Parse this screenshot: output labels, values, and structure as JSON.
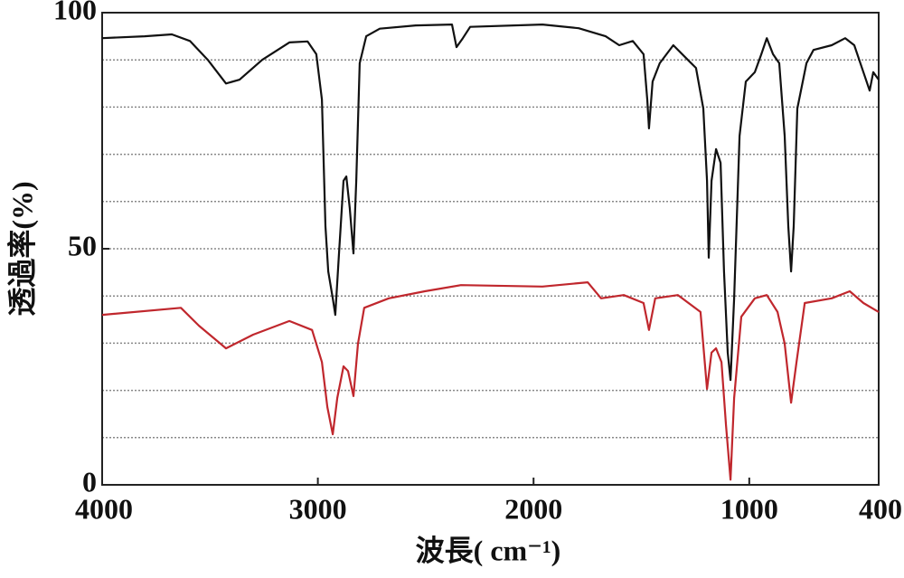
{
  "chart_data": {
    "type": "line",
    "xlabel": "波長( cm⁻¹)",
    "ylabel": "透過率(%)",
    "xlim": [
      4000,
      400
    ],
    "ylim": [
      0,
      100
    ],
    "xticks": [
      4000,
      3000,
      2000,
      1000,
      400
    ],
    "yticks": [
      0,
      50,
      100
    ],
    "ygrid": [
      10,
      20,
      30,
      40,
      50,
      60,
      70,
      80,
      90
    ],
    "series": [
      {
        "color": "#111111",
        "x": [
          4000,
          3803,
          3677,
          3593,
          3510,
          3426,
          3363,
          3258,
          3132,
          3048,
          3007,
          2981,
          2965,
          2952,
          2931,
          2919,
          2902,
          2881,
          2868,
          2852,
          2835,
          2822,
          2806,
          2776,
          2713,
          2546,
          2378,
          2357,
          2328,
          2294,
          1959,
          1791,
          1666,
          1603,
          1540,
          1490,
          1473,
          1465,
          1448,
          1415,
          1352,
          1289,
          1247,
          1213,
          1196,
          1188,
          1175,
          1154,
          1133,
          1117,
          1100,
          1087,
          1070,
          1045,
          1016,
          974,
          944,
          919,
          890,
          861,
          836,
          819,
          806,
          794,
          777,
          735,
          702,
          618,
          555,
          513,
          471,
          442,
          425,
          400
        ],
        "values": [
          94.6,
          95,
          95.4,
          94,
          90,
          85,
          85.8,
          90,
          93.7,
          93.9,
          91.2,
          81.6,
          54.8,
          45.2,
          39.5,
          36,
          49,
          64.4,
          65.3,
          58.6,
          49,
          64.4,
          89.3,
          95,
          96.6,
          97.3,
          97.5,
          92.7,
          94.6,
          97,
          97.5,
          96.7,
          95,
          93.1,
          94,
          91.2,
          81.6,
          75.5,
          85.4,
          89.3,
          93.1,
          90.2,
          88.3,
          79.7,
          64.4,
          48.1,
          64.4,
          71.1,
          68.2,
          45.2,
          28,
          22.2,
          39.5,
          73.9,
          85.4,
          87.4,
          91.2,
          94.6,
          91.2,
          89.3,
          73.9,
          54.8,
          45.2,
          54.8,
          79.7,
          89.3,
          92.1,
          93.1,
          94.6,
          93.1,
          87.4,
          83.5,
          87.4,
          85.8
        ]
      },
      {
        "color": "#c0272d",
        "x": [
          4000,
          3635,
          3551,
          3426,
          3300,
          3132,
          3027,
          2981,
          2956,
          2931,
          2910,
          2881,
          2860,
          2835,
          2814,
          2785,
          2671,
          2504,
          2336,
          1959,
          1749,
          1687,
          1582,
          1490,
          1465,
          1436,
          1331,
          1226,
          1196,
          1175,
          1154,
          1129,
          1108,
          1087,
          1070,
          1037,
          974,
          919,
          869,
          836,
          806,
          781,
          743,
          618,
          534,
          471,
          400
        ],
        "values": [
          36,
          37.5,
          33.7,
          28.9,
          31.8,
          34.7,
          32.8,
          26,
          16.5,
          10.7,
          18.4,
          25.1,
          24.1,
          18.8,
          29.9,
          37.5,
          39.5,
          41,
          42.3,
          42,
          42.9,
          39.5,
          40.2,
          38.5,
          32.8,
          39.5,
          40.2,
          36.6,
          20.3,
          28,
          28.9,
          26,
          12.6,
          1.1,
          18.4,
          35.6,
          39.5,
          40.2,
          36.6,
          29.9,
          17.4,
          26,
          38.5,
          39.5,
          41,
          38.5,
          36.6
        ]
      }
    ]
  }
}
